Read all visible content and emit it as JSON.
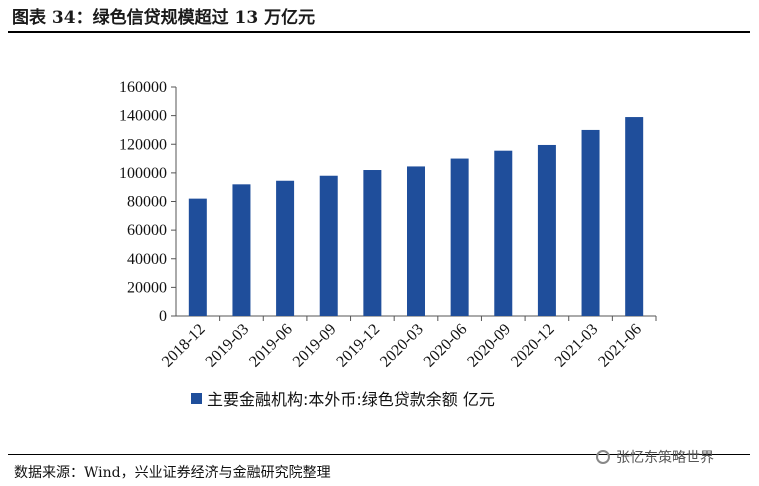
{
  "figure": {
    "title": "图表 34：绿色信贷规模超过 13 万亿元",
    "source": "数据来源：Wind，兴业证券经济与金融研究院整理",
    "watermark": "张忆东策略世界",
    "watermark_icon": "wechat-icon"
  },
  "colors": {
    "bar": "#1F4E9B",
    "axis": "#555555"
  },
  "chart_data": {
    "type": "bar",
    "categories": [
      "2018-12",
      "2019-03",
      "2019-06",
      "2019-09",
      "2019-12",
      "2020-03",
      "2020-06",
      "2020-09",
      "2020-12",
      "2021-03",
      "2021-06"
    ],
    "series": [
      {
        "name": "主要金融机构:本外币:绿色贷款余额 亿元",
        "values": [
          82000,
          92000,
          94500,
          98000,
          102000,
          104500,
          110000,
          115500,
          119500,
          130000,
          139000
        ]
      }
    ],
    "yticks": [
      "160000",
      "140000",
      "120000",
      "100000",
      "80000",
      "60000",
      "40000",
      "20000",
      "0"
    ],
    "ylim": [
      0,
      160000
    ],
    "legend_position": "bottom",
    "grid": false
  }
}
